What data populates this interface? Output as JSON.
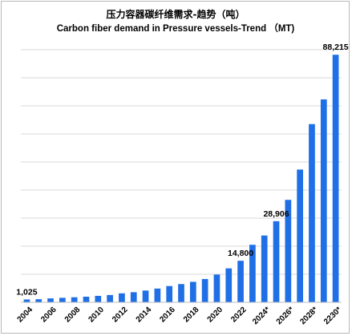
{
  "chart_data": {
    "type": "bar",
    "title": "压力容器碳纤维需求-趋势（吨）",
    "subtitle": "Carbon fiber demand in Pressure vessels-Trend （MT)",
    "color": "#1f6fe6",
    "grid": true,
    "legend": "none",
    "ylim": [
      0,
      90000
    ],
    "categories": [
      "2004",
      "2005",
      "2006",
      "2007",
      "2008",
      "2009",
      "2010",
      "2011",
      "2012",
      "2013",
      "2014",
      "2015",
      "2016",
      "2017",
      "2018",
      "2019",
      "2020",
      "2021",
      "2022",
      "2023",
      "2024*",
      "2025*",
      "2026*",
      "2027*",
      "2028*",
      "2029*",
      "2230*"
    ],
    "tick_labels": [
      "2004",
      "2006",
      "2008",
      "2010",
      "2012",
      "2014",
      "2016",
      "2018",
      "2020",
      "2022",
      "2024*",
      "2026*",
      "2028*",
      "2230*"
    ],
    "values": [
      1025,
      1100,
      1400,
      1600,
      1800,
      2000,
      2300,
      2600,
      3200,
      3600,
      4200,
      4900,
      5800,
      6500,
      7300,
      8300,
      9900,
      12100,
      14800,
      20500,
      23800,
      28906,
      36500,
      47300,
      63500,
      72300,
      88215
    ],
    "data_labels": [
      {
        "category": "2004",
        "text": "1,025"
      },
      {
        "category": "2022",
        "text": "14,800"
      },
      {
        "category": "2025*",
        "text": "28,906"
      },
      {
        "category": "2230*",
        "text": "88,215"
      }
    ]
  }
}
